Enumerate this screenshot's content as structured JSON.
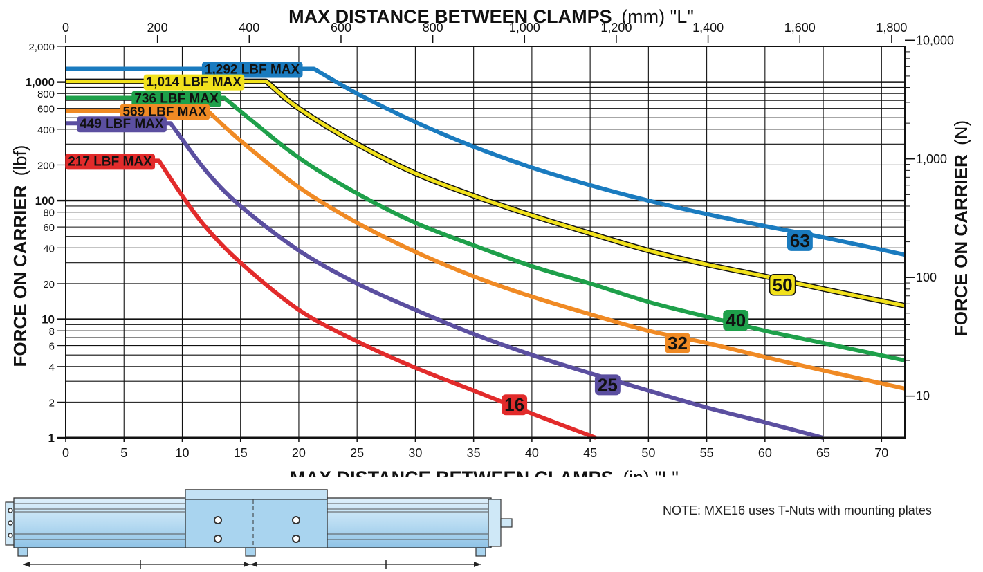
{
  "chart_data": {
    "type": "line",
    "title_top_bold": "MAX DISTANCE BETWEEN CLAMPS",
    "title_top_unit": "(mm) \"L\"",
    "xlabel_bold": "MAX DISTANCE BETWEEN CLAMPS",
    "xlabel_unit": "(in) \"L\"",
    "ylabel_left_bold": "FORCE ON CARRIER",
    "ylabel_left_unit": "(lbf)",
    "ylabel_right_bold": "FORCE ON CARRIER",
    "ylabel_right_unit": "(N)",
    "x_scale": "linear",
    "y_scale": "log",
    "xlim": [
      0,
      72
    ],
    "ylim": [
      1,
      2000
    ],
    "x_ticks": [
      0,
      5,
      10,
      15,
      20,
      25,
      30,
      35,
      40,
      45,
      50,
      55,
      60,
      65,
      70
    ],
    "x_tick_labels": [
      "0",
      "5",
      "10",
      "15",
      "20",
      "25",
      "30",
      "35",
      "40",
      "45",
      "50",
      "55",
      "60",
      "65",
      "70"
    ],
    "x_top_ticks_mm": [
      0,
      200,
      400,
      600,
      800,
      1000,
      1200,
      1400,
      1600,
      1800
    ],
    "x_top_tick_labels": [
      "0",
      "200",
      "400",
      "600",
      "800",
      "1,000",
      "1,200",
      "1,400",
      "1,600",
      "1,800"
    ],
    "y_left_ticks": [
      1,
      2,
      4,
      6,
      8,
      10,
      20,
      40,
      60,
      80,
      100,
      200,
      400,
      600,
      800,
      1000,
      2000
    ],
    "y_left_tick_labels": [
      "1",
      "2",
      "4",
      "6",
      "8",
      "10",
      "20",
      "40",
      "60",
      "80",
      "100",
      "200",
      "400",
      "600",
      "800",
      "1,000",
      "2,000"
    ],
    "y_left_major_ticks": [
      1,
      10,
      100,
      1000
    ],
    "y_right_ticks_N": [
      10,
      100,
      1000,
      10000
    ],
    "y_right_tick_labels": [
      "10",
      "100",
      "1,000",
      "10,000"
    ],
    "grid": true,
    "series": [
      {
        "name": "63",
        "color": "#1a7bbf",
        "max_label": "1,292 LBF MAX",
        "x": [
          0,
          21.3,
          25,
          30,
          35,
          40,
          45,
          50,
          55,
          60,
          65,
          72
        ],
        "y": [
          1292,
          1292,
          800,
          460,
          285,
          190,
          135,
          100,
          77,
          61,
          49,
          35
        ]
      },
      {
        "name": "50",
        "color": "#f1e11c",
        "outline": "#111111",
        "max_label": "1,014 LBF MAX",
        "x": [
          0,
          17.2,
          20,
          25,
          30,
          35,
          40,
          45,
          50,
          55,
          60,
          65,
          72
        ],
        "y": [
          1014,
          1014,
          600,
          300,
          170,
          110,
          75,
          53,
          38,
          29,
          23,
          18,
          13
        ]
      },
      {
        "name": "40",
        "color": "#1ea04a",
        "max_label": "736 LBF MAX",
        "x": [
          0,
          13.6,
          16,
          20,
          25,
          30,
          35,
          40,
          45,
          50,
          55,
          60,
          65,
          72
        ],
        "y": [
          736,
          736,
          470,
          230,
          115,
          65,
          42,
          28,
          20,
          14,
          10.5,
          8,
          6.3,
          4.5
        ]
      },
      {
        "name": "32",
        "color": "#f08a24",
        "max_label": "569 LBF MAX",
        "x": [
          0,
          12.2,
          15,
          20,
          25,
          30,
          35,
          40,
          45,
          50,
          55,
          60,
          65,
          72
        ],
        "y": [
          569,
          569,
          320,
          130,
          65,
          37,
          23,
          15.5,
          11,
          8,
          6.3,
          4.8,
          3.7,
          2.6
        ]
      },
      {
        "name": "25",
        "color": "#5b4fa0",
        "max_label": "449 LBF MAX",
        "x": [
          0,
          9,
          12,
          15,
          20,
          25,
          30,
          35,
          40,
          45,
          50,
          55,
          60,
          65
        ],
        "y": [
          449,
          449,
          180,
          90,
          38,
          20,
          12,
          7.5,
          5,
          3.5,
          2.5,
          1.8,
          1.35,
          1.0
        ]
      },
      {
        "name": "16",
        "color": "#e22b2b",
        "max_label": "217 LBF MAX",
        "x": [
          0,
          8,
          10,
          12,
          15,
          20,
          25,
          30,
          35,
          40,
          45.5
        ],
        "y": [
          217,
          217,
          110,
          60,
          30,
          12,
          6.5,
          3.9,
          2.5,
          1.6,
          1.0
        ]
      }
    ]
  },
  "note": "NOTE: MXE16 uses T-Nuts with mounting plates"
}
